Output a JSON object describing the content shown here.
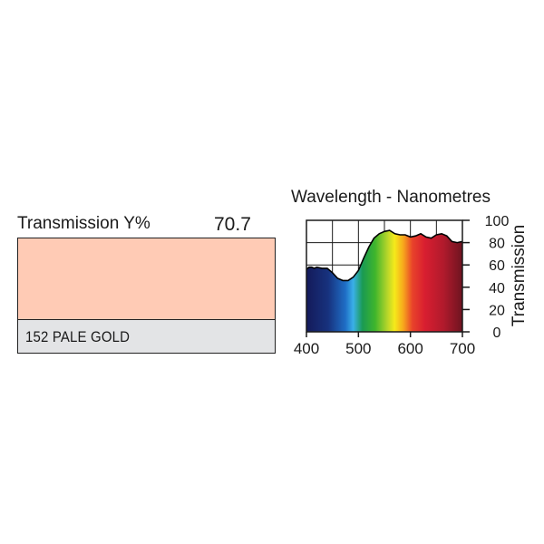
{
  "filter": {
    "transmission_label": "Transmission Y%",
    "transmission_value": "70.7",
    "name": "152 PALE GOLD",
    "swatch_color": "#ffcbb5"
  },
  "chart_data": {
    "type": "area",
    "title": "Wavelength - Nanometres",
    "xlabel": "",
    "ylabel": "Transmission",
    "xlim": [
      400,
      700
    ],
    "ylim": [
      0,
      100
    ],
    "xticks": [
      "400",
      "500",
      "600",
      "700"
    ],
    "yticks": [
      "0",
      "20",
      "40",
      "60",
      "80",
      "100"
    ],
    "grid": true,
    "x": [
      400,
      405,
      410,
      415,
      420,
      430,
      440,
      450,
      460,
      470,
      480,
      490,
      500,
      510,
      520,
      530,
      540,
      550,
      560,
      570,
      580,
      590,
      600,
      610,
      620,
      630,
      640,
      650,
      660,
      670,
      680,
      690,
      700
    ],
    "values": [
      56,
      58,
      58,
      57,
      58,
      57,
      57,
      53,
      48,
      46,
      46,
      49,
      55,
      66,
      76,
      84,
      88,
      90,
      91,
      88,
      87,
      87,
      85,
      86,
      88,
      85,
      84,
      87,
      88,
      86,
      81,
      80,
      81
    ]
  }
}
